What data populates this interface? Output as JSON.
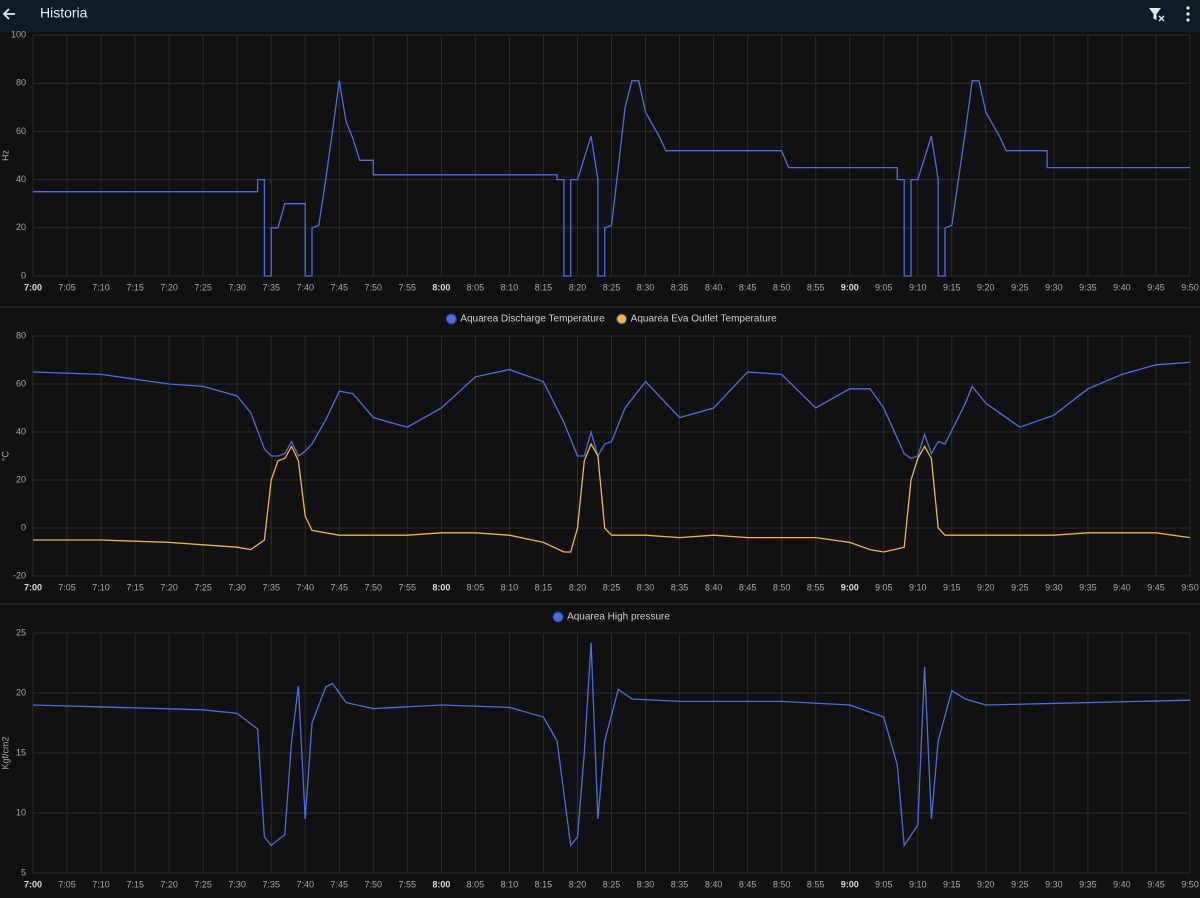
{
  "header": {
    "title": "Historia"
  },
  "chart_data": [
    {
      "type": "line",
      "y_label": "Hz",
      "legend": false,
      "grid": true,
      "xlim": [
        "7:00",
        "9:50"
      ],
      "ylim": [
        0,
        100
      ],
      "yticks": [
        0,
        20,
        40,
        60,
        80,
        100
      ],
      "xticks": [
        "7:00",
        "7:05",
        "7:10",
        "7:15",
        "7:20",
        "7:25",
        "7:30",
        "7:35",
        "7:40",
        "7:45",
        "7:50",
        "7:55",
        "8:00",
        "8:05",
        "8:10",
        "8:15",
        "8:20",
        "8:25",
        "8:30",
        "8:35",
        "8:40",
        "8:45",
        "8:50",
        "8:55",
        "9:00",
        "9:05",
        "9:10",
        "9:15",
        "9:20",
        "9:25",
        "9:30",
        "9:35",
        "9:40",
        "9:45",
        "9:50"
      ],
      "x": [
        "7:00",
        "7:33",
        "7:33",
        "7:34",
        "7:34",
        "7:35",
        "7:35",
        "7:36",
        "7:37",
        "7:40",
        "7:40",
        "7:41",
        "7:41",
        "7:42",
        "7:43",
        "7:44",
        "7:45",
        "7:46",
        "7:47",
        "7:48",
        "7:50",
        "7:50",
        "8:17",
        "8:17",
        "8:18",
        "8:18",
        "8:19",
        "8:19",
        "8:20",
        "8:22",
        "8:23",
        "8:23",
        "8:24",
        "8:24",
        "8:25",
        "8:26",
        "8:27",
        "8:28",
        "8:29",
        "8:30",
        "8:32",
        "8:33",
        "8:50",
        "8:51",
        "9:07",
        "9:07",
        "9:08",
        "9:08",
        "9:09",
        "9:09",
        "9:10",
        "9:12",
        "9:13",
        "9:13",
        "9:14",
        "9:14",
        "9:15",
        "9:17",
        "9:18",
        "9:19",
        "9:20",
        "9:22",
        "9:23",
        "9:29",
        "9:29",
        "9:50"
      ],
      "series": [
        {
          "color": "#4a6ee0",
          "values": [
            35,
            35,
            40,
            40,
            0,
            0,
            20,
            20,
            30,
            30,
            0,
            0,
            20,
            21,
            40,
            60,
            81,
            64,
            57,
            48,
            48,
            42,
            42,
            40,
            40,
            0,
            0,
            40,
            40,
            58,
            40,
            0,
            0,
            20,
            21,
            45,
            70,
            81,
            81,
            68,
            58,
            52,
            52,
            45,
            45,
            40,
            40,
            0,
            0,
            40,
            40,
            58,
            40,
            0,
            0,
            20,
            21,
            60,
            81,
            81,
            68,
            58,
            52,
            52,
            45,
            45
          ]
        }
      ]
    },
    {
      "type": "line",
      "y_label": "°C",
      "legend": true,
      "grid": true,
      "xlim": [
        "7:00",
        "9:50"
      ],
      "ylim": [
        -20,
        80
      ],
      "yticks": [
        -20,
        0,
        20,
        40,
        60,
        80
      ],
      "xticks": [
        "7:00",
        "7:05",
        "7:10",
        "7:15",
        "7:20",
        "7:25",
        "7:30",
        "7:35",
        "7:40",
        "7:45",
        "7:50",
        "7:55",
        "8:00",
        "8:05",
        "8:10",
        "8:15",
        "8:20",
        "8:25",
        "8:30",
        "8:35",
        "8:40",
        "8:45",
        "8:50",
        "8:55",
        "9:00",
        "9:05",
        "9:10",
        "9:15",
        "9:20",
        "9:25",
        "9:30",
        "9:35",
        "9:40",
        "9:45",
        "9:50"
      ],
      "x": [
        "7:00",
        "7:10",
        "7:20",
        "7:25",
        "7:30",
        "7:32",
        "7:34",
        "7:35",
        "7:36",
        "7:37",
        "7:38",
        "7:39",
        "7:40",
        "7:41",
        "7:43",
        "7:45",
        "7:47",
        "7:50",
        "7:55",
        "8:00",
        "8:05",
        "8:10",
        "8:15",
        "8:18",
        "8:19",
        "8:20",
        "8:21",
        "8:22",
        "8:23",
        "8:24",
        "8:25",
        "8:27",
        "8:30",
        "8:35",
        "8:40",
        "8:45",
        "8:50",
        "8:55",
        "9:00",
        "9:03",
        "9:05",
        "9:08",
        "9:09",
        "9:10",
        "9:11",
        "9:12",
        "9:13",
        "9:14",
        "9:17",
        "9:18",
        "9:20",
        "9:25",
        "9:30",
        "9:35",
        "9:40",
        "9:45",
        "9:50"
      ],
      "series": [
        {
          "name": "Aquarea Discharge Temperature",
          "color": "#4a6ee0",
          "values": [
            65,
            64,
            60,
            59,
            55,
            48,
            33,
            30,
            30,
            31,
            36,
            30,
            32,
            35,
            45,
            57,
            56,
            46,
            42,
            50,
            63,
            66,
            61,
            44,
            37,
            30,
            30,
            40,
            30,
            35,
            36,
            50,
            61,
            46,
            50,
            65,
            64,
            50,
            58,
            58,
            50,
            31,
            29,
            30,
            39,
            31,
            36,
            35,
            52,
            59,
            52,
            42,
            47,
            58,
            64,
            68,
            69
          ]
        },
        {
          "name": "Aquarea Eva Outlet Temperature",
          "color": "#f2b43c",
          "values": [
            -5,
            -5,
            -6,
            -7,
            -8,
            -9,
            -5,
            20,
            28,
            29,
            34,
            28,
            5,
            -1,
            -2,
            -3,
            -3,
            -3,
            -3,
            -2,
            -2,
            -3,
            -6,
            -10,
            -10,
            0,
            28,
            35,
            30,
            0,
            -3,
            -3,
            -3,
            -4,
            -3,
            -4,
            -4,
            -4,
            -6,
            -9,
            -10,
            -8,
            20,
            29,
            34,
            29,
            0,
            -3,
            -3,
            -3,
            -3,
            -3,
            -3,
            -2,
            -2,
            -2,
            -4
          ]
        }
      ]
    },
    {
      "type": "line",
      "y_label": "Kgf/cm2",
      "legend": true,
      "grid": true,
      "xlim": [
        "7:00",
        "9:50"
      ],
      "ylim": [
        5,
        25
      ],
      "yticks": [
        5,
        10,
        15,
        20,
        25
      ],
      "xticks": [
        "7:00",
        "7:05",
        "7:10",
        "7:15",
        "7:20",
        "7:25",
        "7:30",
        "7:35",
        "7:40",
        "7:45",
        "7:50",
        "7:55",
        "8:00",
        "8:05",
        "8:10",
        "8:15",
        "8:20",
        "8:25",
        "8:30",
        "8:35",
        "8:40",
        "8:45",
        "8:50",
        "8:55",
        "9:00",
        "9:05",
        "9:10",
        "9:15",
        "9:20",
        "9:25",
        "9:30",
        "9:35",
        "9:40",
        "9:45",
        "9:50"
      ],
      "x": [
        "7:00",
        "7:25",
        "7:30",
        "7:33",
        "7:34",
        "7:35",
        "7:37",
        "7:38",
        "7:39",
        "7:40",
        "7:41",
        "7:43",
        "7:44",
        "7:46",
        "7:50",
        "8:00",
        "8:10",
        "8:15",
        "8:17",
        "8:19",
        "8:20",
        "8:21",
        "8:22",
        "8:23",
        "8:24",
        "8:26",
        "8:28",
        "8:35",
        "8:50",
        "9:00",
        "9:05",
        "9:07",
        "9:08",
        "9:10",
        "9:11",
        "9:12",
        "9:13",
        "9:15",
        "9:17",
        "9:20",
        "9:50"
      ],
      "series": [
        {
          "name": "Aquarea High pressure",
          "color": "#4a6ee0",
          "values": [
            19,
            18.6,
            18.3,
            17,
            8,
            7.3,
            8.2,
            16,
            20.6,
            9.5,
            17.5,
            20.5,
            20.8,
            19.2,
            18.7,
            19,
            18.8,
            18,
            16,
            7.3,
            8,
            15,
            24.2,
            9.5,
            16,
            20.3,
            19.5,
            19.3,
            19.3,
            19,
            18,
            14,
            7.3,
            9,
            22.2,
            9.5,
            16,
            20.2,
            19.5,
            19,
            19.4
          ]
        }
      ]
    }
  ]
}
